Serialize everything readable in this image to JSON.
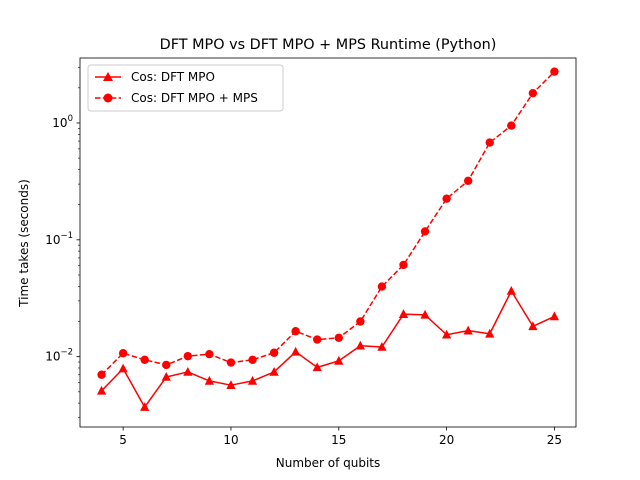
{
  "chart_data": {
    "type": "line",
    "title": "DFT MPO vs DFT MPO + MPS Runtime (Python)",
    "xlabel": "Number of qubits",
    "ylabel": "Time takes (seconds)",
    "x": [
      4,
      5,
      6,
      7,
      8,
      9,
      10,
      11,
      12,
      13,
      14,
      15,
      16,
      17,
      18,
      19,
      20,
      21,
      22,
      23,
      24,
      25
    ],
    "xlim": [
      3,
      26
    ],
    "xticks": [
      5,
      10,
      15,
      20,
      25
    ],
    "yscale": "log",
    "ylim": [
      0.0025,
      3.6
    ],
    "yticks": [
      {
        "value": 0.01,
        "base": "10",
        "exp": "−2"
      },
      {
        "value": 0.1,
        "base": "10",
        "exp": "−1"
      },
      {
        "value": 1,
        "base": "10",
        "exp": "0"
      }
    ],
    "grid": false,
    "legend_position": "top-left",
    "series": [
      {
        "name": "Cos: DFT MPO",
        "color": "#ff0000",
        "marker": "triangle",
        "linestyle": "solid",
        "values": [
          0.0051,
          0.0079,
          0.0037,
          0.0067,
          0.0074,
          0.0062,
          0.0057,
          0.0062,
          0.0074,
          0.011,
          0.0081,
          0.0092,
          0.0124,
          0.0121,
          0.0231,
          0.0228,
          0.0154,
          0.0167,
          0.0157,
          0.0365,
          0.0182,
          0.0221
        ]
      },
      {
        "name": "Cos: DFT MPO + MPS",
        "color": "#ff0000",
        "marker": "circle",
        "linestyle": "dashed",
        "values": [
          0.007,
          0.0107,
          0.0094,
          0.0085,
          0.0101,
          0.0105,
          0.0089,
          0.0094,
          0.0108,
          0.0165,
          0.014,
          0.0145,
          0.02,
          0.0398,
          0.061,
          0.118,
          0.225,
          0.32,
          0.68,
          0.95,
          1.8,
          2.75
        ]
      }
    ]
  }
}
